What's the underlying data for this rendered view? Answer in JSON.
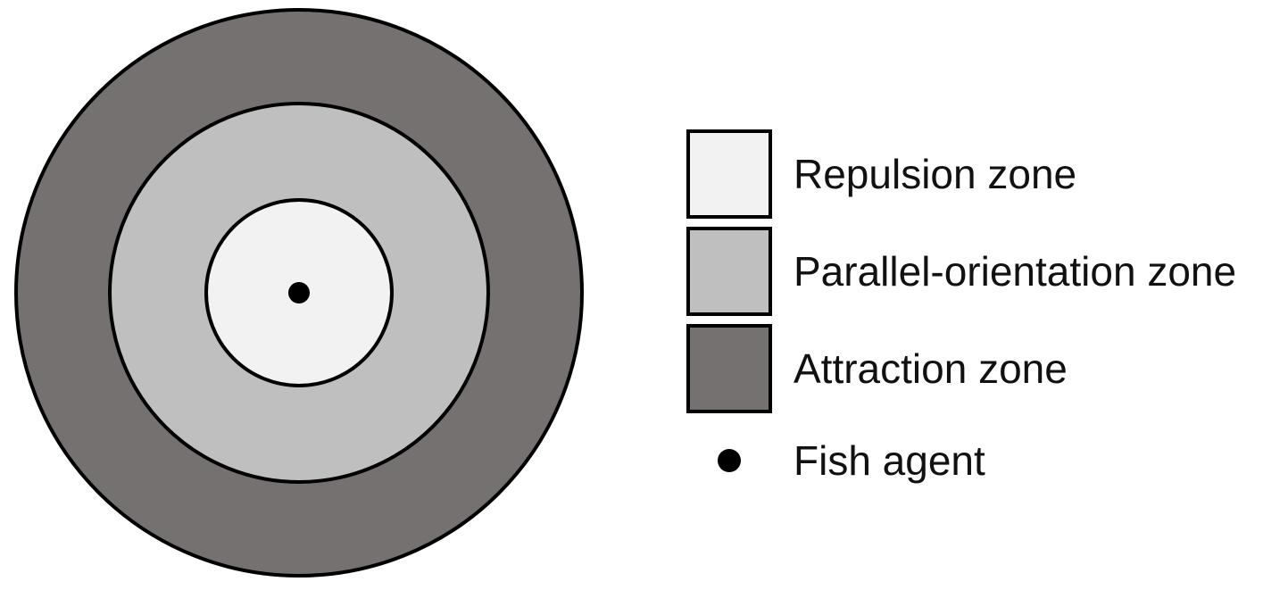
{
  "zones": [
    {
      "label": "Repulsion zone",
      "color": "#f2f2f2"
    },
    {
      "label": "Parallel-orientation zone",
      "color": "#bfbfbf"
    },
    {
      "label": "Attraction zone",
      "color": "#767171"
    }
  ],
  "agent": {
    "label": "Fish agent",
    "color": "#000000"
  },
  "outline_color": "#000000"
}
